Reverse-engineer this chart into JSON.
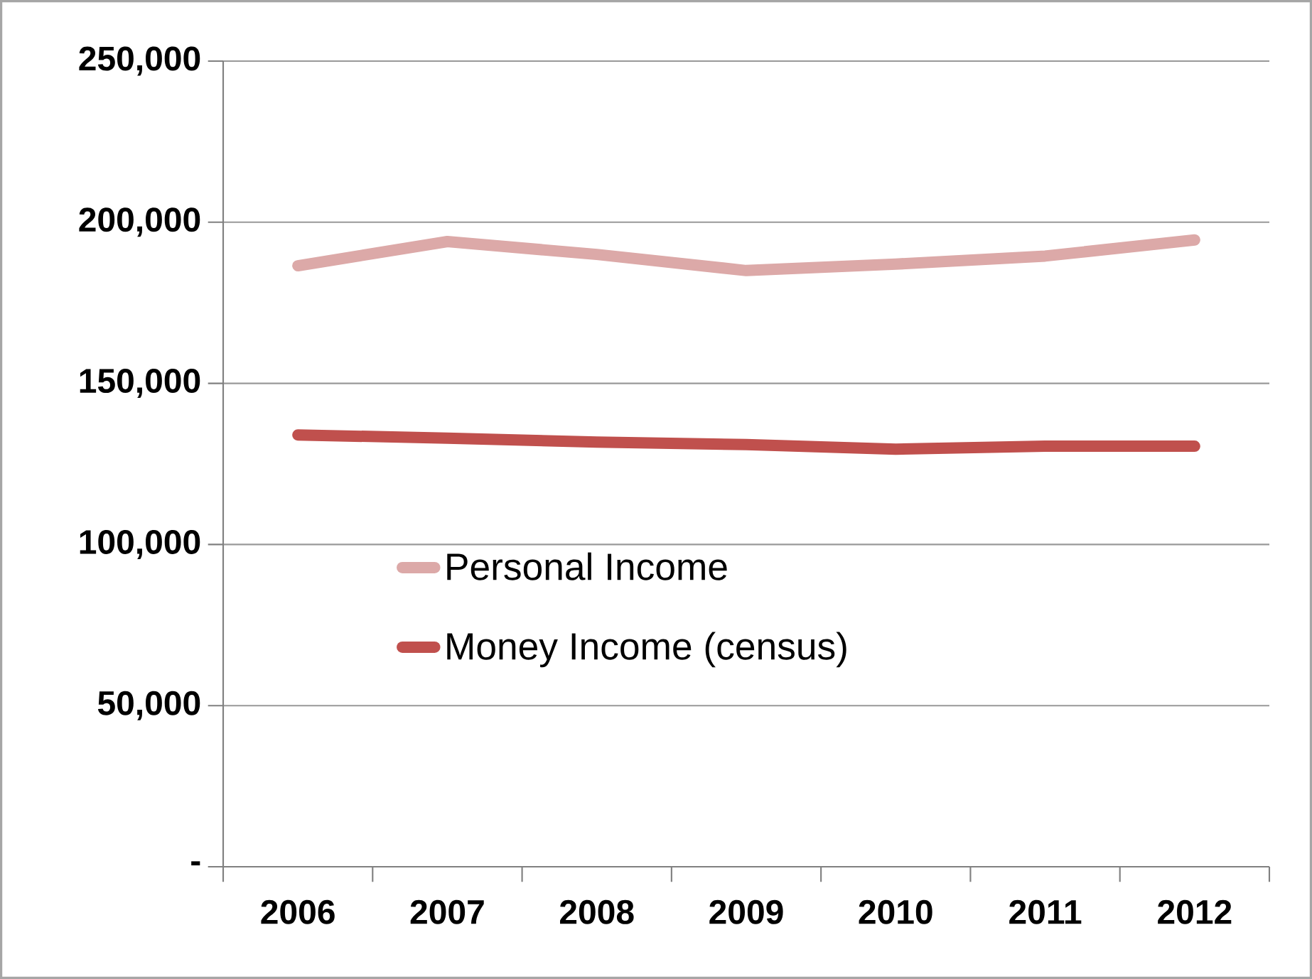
{
  "chart_data": {
    "type": "line",
    "categories": [
      "2006",
      "2007",
      "2008",
      "2009",
      "2010",
      "2011",
      "2012"
    ],
    "series": [
      {
        "name": "Personal Income",
        "color": "#dca9a8",
        "values": [
          186500,
          194000,
          190000,
          185000,
          187000,
          189500,
          194500
        ]
      },
      {
        "name": "Money Income (census)",
        "color": "#c0504d",
        "values": [
          134000,
          133000,
          131800,
          131000,
          129600,
          130500,
          130500
        ]
      }
    ],
    "ylim": [
      0,
      250000
    ],
    "yticks": [
      {
        "value": 0,
        "label": "-"
      },
      {
        "value": 50000,
        "label": "50,000"
      },
      {
        "value": 100000,
        "label": "100,000"
      },
      {
        "value": 150000,
        "label": "150,000"
      },
      {
        "value": 200000,
        "label": "200,000"
      },
      {
        "value": 250000,
        "label": "250,000"
      }
    ],
    "grid": "y",
    "legend": "left",
    "marker": "none",
    "line_style": "solid"
  }
}
